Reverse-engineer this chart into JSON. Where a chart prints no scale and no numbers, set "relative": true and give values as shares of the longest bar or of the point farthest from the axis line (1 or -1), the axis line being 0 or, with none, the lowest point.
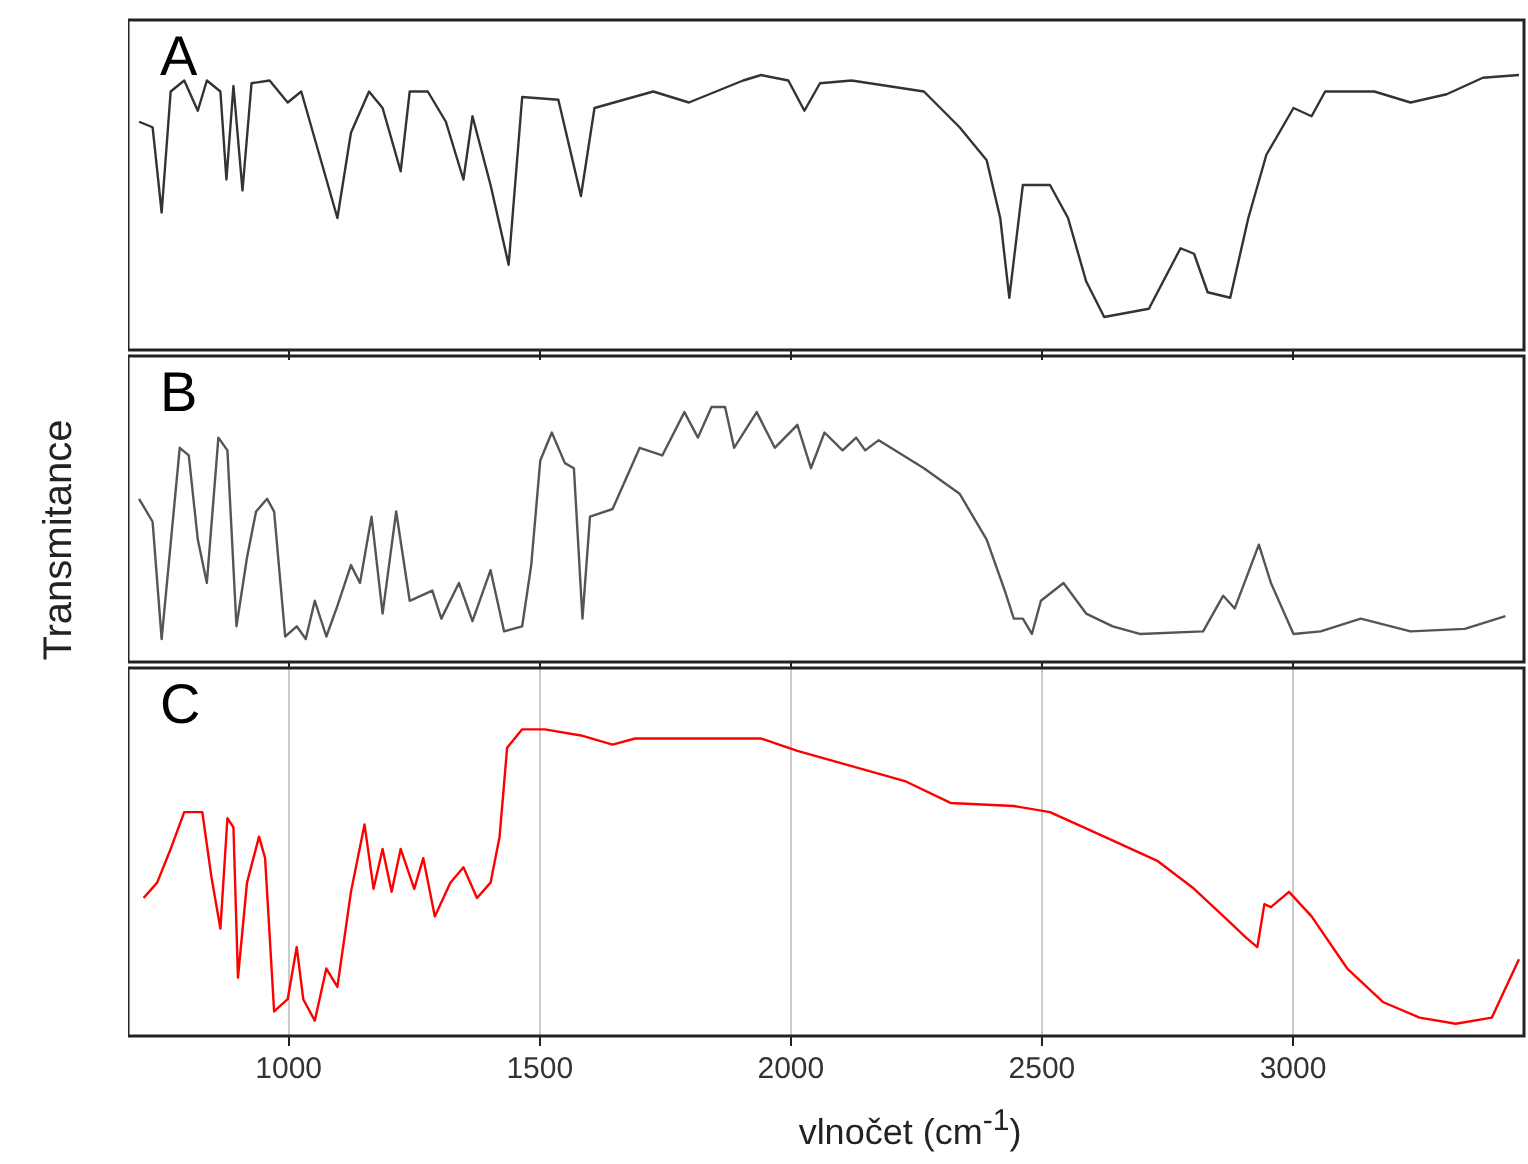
{
  "chart_data": [
    {
      "type": "line",
      "title": "A",
      "relative": true,
      "color": "#333333",
      "xlim": [
        680,
        3460
      ],
      "xticks": [
        1000,
        1500,
        2000,
        2500,
        3000
      ],
      "tick_labels": false,
      "x": [
        702,
        729,
        747,
        765,
        792,
        819,
        837,
        864,
        876,
        890,
        908,
        926,
        962,
        998,
        1025,
        1061,
        1097,
        1124,
        1160,
        1187,
        1223,
        1241,
        1277,
        1313,
        1348,
        1366,
        1402,
        1438,
        1465,
        1537,
        1582,
        1609,
        1726,
        1797,
        1905,
        1941,
        1995,
        2027,
        2058,
        2121,
        2265,
        2336,
        2390,
        2417,
        2435,
        2462,
        2516,
        2552,
        2588,
        2624,
        2713,
        2776,
        2803,
        2830,
        2875,
        2911,
        2947,
        3001,
        3037,
        3064,
        3162,
        3234,
        3306,
        3378,
        3450
      ],
      "values": [
        0.83,
        0.81,
        0.5,
        0.94,
        0.98,
        0.87,
        0.98,
        0.94,
        0.62,
        0.96,
        0.58,
        0.97,
        0.98,
        0.9,
        0.94,
        0.71,
        0.48,
        0.79,
        0.94,
        0.88,
        0.65,
        0.94,
        0.94,
        0.83,
        0.62,
        0.85,
        0.6,
        0.31,
        0.92,
        0.91,
        0.56,
        0.88,
        0.94,
        0.9,
        0.98,
        1,
        0.98,
        0.87,
        0.97,
        0.98,
        0.94,
        0.81,
        0.69,
        0.48,
        0.19,
        0.6,
        0.6,
        0.48,
        0.25,
        0.12,
        0.15,
        0.37,
        0.35,
        0.21,
        0.19,
        0.48,
        0.71,
        0.88,
        0.85,
        0.94,
        0.94,
        0.9,
        0.93,
        0.99,
        1
      ]
    },
    {
      "type": "line",
      "title": "B",
      "ylabel": "Transmitance",
      "relative": true,
      "color": "#555555",
      "xlim": [
        680,
        3460
      ],
      "xticks": [
        1000,
        1500,
        2000,
        2500,
        3000
      ],
      "tick_labels": false,
      "x": [
        702,
        729,
        747,
        783,
        801,
        819,
        837,
        860,
        878,
        896,
        917,
        935,
        957,
        971,
        993,
        1016,
        1034,
        1052,
        1075,
        1097,
        1124,
        1142,
        1165,
        1187,
        1214,
        1241,
        1286,
        1304,
        1339,
        1366,
        1402,
        1429,
        1465,
        1483,
        1501,
        1524,
        1550,
        1568,
        1585,
        1600,
        1645,
        1699,
        1744,
        1788,
        1815,
        1842,
        1869,
        1887,
        1932,
        1968,
        2013,
        2040,
        2067,
        2103,
        2130,
        2148,
        2175,
        2265,
        2336,
        2390,
        2426,
        2444,
        2462,
        2480,
        2498,
        2543,
        2588,
        2641,
        2695,
        2821,
        2861,
        2884,
        2932,
        2956,
        3001,
        3055,
        3135,
        3234,
        3342,
        3423
      ],
      "values": [
        0.64,
        0.55,
        0.09,
        0.84,
        0.81,
        0.48,
        0.31,
        0.88,
        0.83,
        0.14,
        0.41,
        0.59,
        0.64,
        0.59,
        0.1,
        0.14,
        0.09,
        0.24,
        0.1,
        0.22,
        0.38,
        0.31,
        0.57,
        0.19,
        0.59,
        0.24,
        0.28,
        0.17,
        0.31,
        0.16,
        0.36,
        0.12,
        0.14,
        0.38,
        0.79,
        0.9,
        0.78,
        0.76,
        0.17,
        0.57,
        0.6,
        0.84,
        0.81,
        0.98,
        0.88,
        1,
        1,
        0.84,
        0.98,
        0.84,
        0.93,
        0.76,
        0.9,
        0.83,
        0.88,
        0.83,
        0.87,
        0.76,
        0.66,
        0.48,
        0.28,
        0.17,
        0.17,
        0.11,
        0.24,
        0.31,
        0.19,
        0.14,
        0.11,
        0.12,
        0.26,
        0.21,
        0.46,
        0.31,
        0.11,
        0.12,
        0.17,
        0.12,
        0.13,
        0.18
      ]
    },
    {
      "type": "line",
      "title": "C",
      "xlabel": "vlnočet (cm$^{-1}$)",
      "relative": true,
      "color": "#ff0000",
      "xlim": [
        680,
        3460
      ],
      "xticks": [
        1000,
        1500,
        2000,
        2500,
        3000
      ],
      "grid": "x",
      "x": [
        711,
        738,
        765,
        792,
        828,
        846,
        864,
        878,
        890,
        899,
        917,
        941,
        953,
        971,
        998,
        1016,
        1029,
        1052,
        1075,
        1097,
        1124,
        1151,
        1169,
        1187,
        1205,
        1223,
        1250,
        1268,
        1291,
        1322,
        1348,
        1375,
        1402,
        1420,
        1435,
        1465,
        1510,
        1582,
        1645,
        1690,
        1815,
        1941,
        2013,
        2121,
        2229,
        2318,
        2444,
        2516,
        2624,
        2731,
        2803,
        2875,
        2907,
        2929,
        2943,
        2956,
        2992,
        3037,
        3108,
        3180,
        3252,
        3324,
        3396,
        3450
      ],
      "values": [
        0.45,
        0.5,
        0.61,
        0.73,
        0.73,
        0.52,
        0.35,
        0.71,
        0.68,
        0.19,
        0.5,
        0.65,
        0.58,
        0.08,
        0.12,
        0.29,
        0.12,
        0.05,
        0.22,
        0.16,
        0.47,
        0.69,
        0.48,
        0.61,
        0.47,
        0.61,
        0.48,
        0.58,
        0.39,
        0.5,
        0.55,
        0.45,
        0.5,
        0.65,
        0.94,
        1,
        1,
        0.98,
        0.95,
        0.97,
        0.97,
        0.97,
        0.93,
        0.88,
        0.83,
        0.76,
        0.75,
        0.73,
        0.65,
        0.57,
        0.48,
        0.37,
        0.32,
        0.29,
        0.43,
        0.42,
        0.47,
        0.39,
        0.22,
        0.11,
        0.06,
        0.04,
        0.06,
        0.25
      ]
    }
  ]
}
